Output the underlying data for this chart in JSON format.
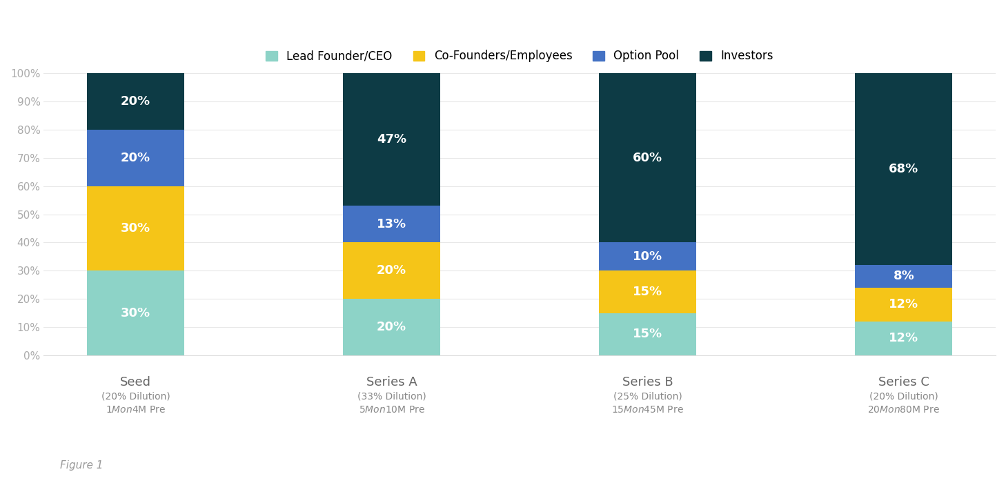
{
  "series": {
    "Lead Founder/CEO": [
      30,
      20,
      15,
      12
    ],
    "Co-Founders/Employees": [
      30,
      20,
      15,
      12
    ],
    "Option Pool": [
      20,
      13,
      10,
      8
    ],
    "Investors": [
      20,
      47,
      60,
      68
    ]
  },
  "colors": {
    "Lead Founder/CEO": "#8dd3c7",
    "Co-Founders/Employees": "#f5c518",
    "Option Pool": "#4472c4",
    "Investors": "#0d3b45"
  },
  "label_color": "#ffffff",
  "background_color": "#ffffff",
  "bar_width": 0.38,
  "ylim": [
    0,
    100
  ],
  "ytick_values": [
    0,
    10,
    20,
    30,
    40,
    50,
    60,
    70,
    80,
    90,
    100
  ],
  "ytick_labels": [
    "0%",
    "10%",
    "20%",
    "30%",
    "40%",
    "50%",
    "60%",
    "70%",
    "80%",
    "90%",
    "100%"
  ],
  "legend_order": [
    "Lead Founder/CEO",
    "Co-Founders/Employees",
    "Option Pool",
    "Investors"
  ],
  "x_labels_line1": [
    "Seed",
    "Series A",
    "Series B",
    "Series C"
  ],
  "x_labels_line2": [
    "(20% Dilution)",
    "(33% Dilution)",
    "(25% Dilution)",
    "(20% Dilution)"
  ],
  "x_labels_line3": [
    "$1M on $4M Pre",
    "$5M on $10M Pre",
    "$15M on $45M Pre",
    "$20M on $80M Pre"
  ],
  "figure_caption": "Figure 1",
  "label_fontsize": 13,
  "tick_fontsize": 11,
  "legend_fontsize": 12,
  "caption_fontsize": 11,
  "xlabel_fontsize_main": 13,
  "xlabel_fontsize_sub": 10
}
